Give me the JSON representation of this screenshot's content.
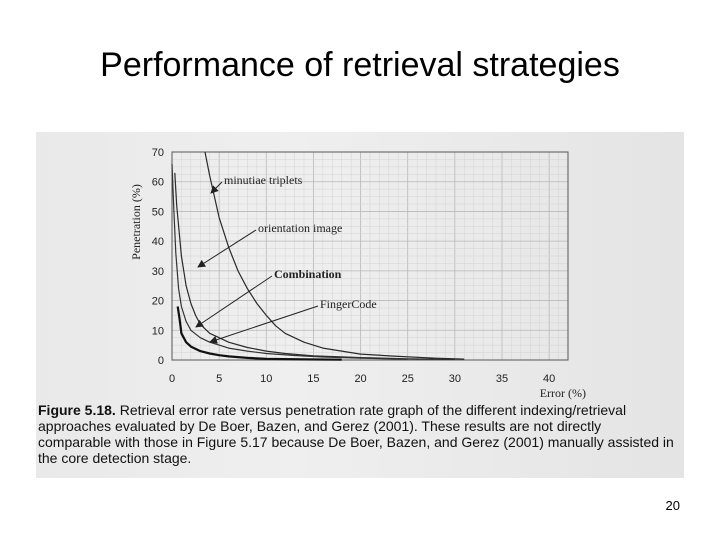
{
  "slide": {
    "title": "Performance of retrieval strategies",
    "page_number": "20"
  },
  "figure": {
    "caption_label": "Figure 5.18.",
    "caption_text": "Retrieval error rate versus penetration rate graph of the different indexing/retrieval approaches evaluated by De Boer, Bazen, and Gerez (2001). These results are not directly comparable with those in Figure 5.17 because De Boer, Bazen, and Gerez (2001) manually assisted in the core detection stage."
  },
  "chart_data": {
    "type": "line",
    "xlabel": "Error (%)",
    "ylabel": "Penetration (%)",
    "xlim": [
      0,
      42
    ],
    "ylim": [
      0,
      70
    ],
    "xticks": [
      0,
      5,
      10,
      15,
      20,
      25,
      30,
      35,
      40
    ],
    "yticks": [
      0,
      10,
      20,
      30,
      40,
      50,
      60,
      70
    ],
    "grid": true,
    "series": [
      {
        "name": "minutiae triplets",
        "color": "#2a2a2a",
        "x": [
          3.5,
          4,
          5,
          6,
          7,
          8,
          9,
          10,
          11,
          12,
          14,
          16,
          18,
          20,
          24,
          28,
          31
        ],
        "y": [
          70,
          62,
          48,
          38,
          30,
          24,
          19,
          15,
          11.5,
          9,
          6,
          4,
          3,
          2,
          1.2,
          0.6,
          0.3
        ]
      },
      {
        "name": "orientation image",
        "color": "#2a2a2a",
        "x": [
          0.3,
          0.5,
          1,
          1.5,
          2,
          2.5,
          3,
          4,
          5,
          6,
          8,
          10,
          12,
          15,
          20,
          25,
          30
        ],
        "y": [
          63,
          52,
          35,
          25,
          19,
          15,
          12,
          9,
          7.5,
          6,
          4.2,
          3,
          2.2,
          1.4,
          0.8,
          0.4,
          0.2
        ]
      },
      {
        "name": "Combination",
        "color": "#111111",
        "x": [
          0.6,
          0.8,
          1,
          1.5,
          2,
          3,
          4,
          5,
          6,
          8,
          10,
          14,
          18
        ],
        "y": [
          18,
          14,
          9,
          6,
          4.5,
          3,
          2.2,
          1.6,
          1.2,
          0.7,
          0.4,
          0.2,
          0.1
        ]
      },
      {
        "name": "FingerCode",
        "color": "#333333",
        "x": [
          0,
          0.2,
          0.4,
          0.7,
          1,
          1.5,
          2,
          3,
          4,
          5,
          6,
          8,
          10,
          13,
          16,
          20,
          25
        ],
        "y": [
          66,
          50,
          36,
          24,
          18,
          13,
          10,
          7.5,
          6,
          5,
          4,
          3,
          2.2,
          1.5,
          1,
          0.6,
          0.3
        ]
      }
    ],
    "annotations": [
      {
        "text": "minutiae triplets",
        "bold": false
      },
      {
        "text": "orientation image",
        "bold": false
      },
      {
        "text": "Combination",
        "bold": true
      },
      {
        "text": "FingerCode",
        "bold": false
      }
    ]
  }
}
